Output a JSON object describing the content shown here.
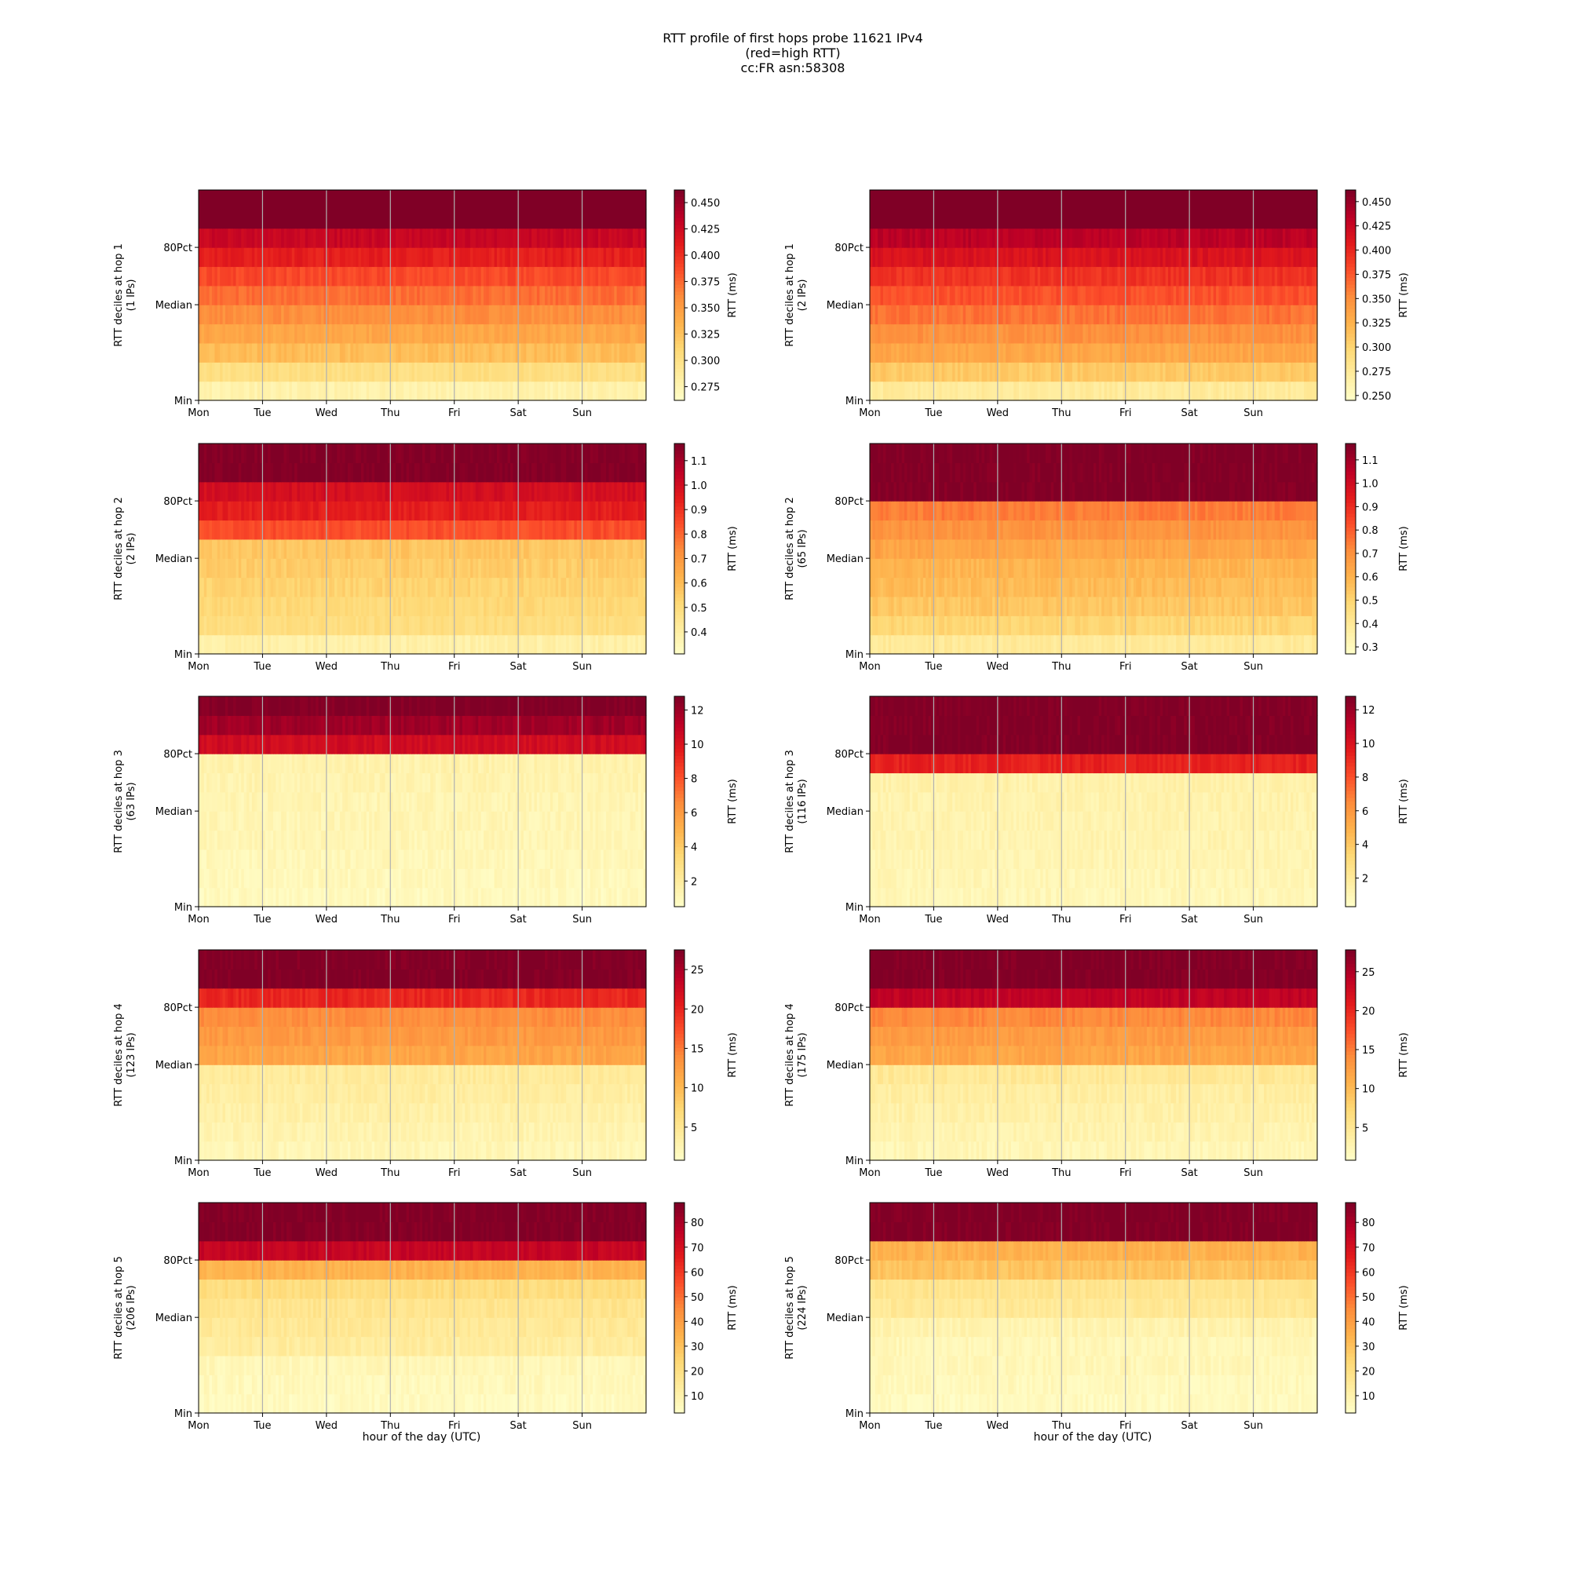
{
  "figure": {
    "title_lines": [
      "RTT profile of first hops probe 11621 IPv4",
      "(red=high RTT)",
      "cc:FR asn:58308"
    ],
    "xlabel": "hour of the day (UTC)",
    "x_ticks": [
      "Mon",
      "Tue",
      "Wed",
      "Thu",
      "Fri",
      "Sat",
      "Sun"
    ],
    "y_ticks": [
      "Min",
      "Median",
      "80Pct"
    ],
    "colorbar_label": "RTT (ms)",
    "colormap": [
      "#ffffcc",
      "#ffeda0",
      "#fed976",
      "#feb24c",
      "#fd8d3c",
      "#fc4e2a",
      "#e31a1c",
      "#bd0026",
      "#800026"
    ]
  },
  "chart_data": [
    {
      "type": "heatmap",
      "hop": 1,
      "column": "left",
      "ylabel": [
        "RTT deciles at hop 1",
        "(1 IPs)"
      ],
      "colorbar_ticks": [
        "0.450",
        "0.425",
        "0.400",
        "0.375",
        "0.350",
        "0.325",
        "0.300",
        "0.275"
      ],
      "vmin": 0.262,
      "vmax": 0.462,
      "deciles": [
        0.28,
        0.305,
        0.33,
        0.345,
        0.36,
        0.375,
        0.39,
        0.41,
        0.43,
        0.47,
        0.47
      ]
    },
    {
      "type": "heatmap",
      "hop": 1,
      "column": "right",
      "ylabel": [
        "RTT deciles at hop 1",
        "(2 IPs)"
      ],
      "colorbar_ticks": [
        "0.450",
        "0.425",
        "0.400",
        "0.375",
        "0.350",
        "0.325",
        "0.300",
        "0.275",
        "0.250"
      ],
      "vmin": 0.245,
      "vmax": 0.462,
      "deciles": [
        0.275,
        0.31,
        0.335,
        0.35,
        0.365,
        0.38,
        0.395,
        0.415,
        0.435,
        0.47,
        0.47
      ]
    },
    {
      "type": "heatmap",
      "hop": 2,
      "column": "left",
      "ylabel": [
        "RTT deciles at hop 2",
        "(2 IPs)"
      ],
      "colorbar_ticks": [
        "1.1",
        "1.0",
        "0.9",
        "0.8",
        "0.7",
        "0.6",
        "0.5",
        "0.4"
      ],
      "vmin": 0.31,
      "vmax": 1.17,
      "deciles": [
        0.4,
        0.5,
        0.52,
        0.54,
        0.56,
        0.58,
        0.85,
        0.95,
        1.0,
        1.17,
        1.17
      ]
    },
    {
      "type": "heatmap",
      "hop": 2,
      "column": "right",
      "ylabel": [
        "RTT deciles at hop 2",
        "(65 IPs)"
      ],
      "colorbar_ticks": [
        "1.1",
        "1.0",
        "0.9",
        "0.8",
        "0.7",
        "0.6",
        "0.5",
        "0.4",
        "0.3"
      ],
      "vmin": 0.27,
      "vmax": 1.17,
      "deciles": [
        0.4,
        0.5,
        0.55,
        0.58,
        0.6,
        0.65,
        0.7,
        0.75,
        1.17,
        1.17,
        1.17
      ]
    },
    {
      "type": "heatmap",
      "hop": 3,
      "column": "left",
      "ylabel": [
        "RTT deciles at hop 3",
        "(63 IPs)"
      ],
      "colorbar_ticks": [
        "12",
        "10",
        "8",
        "6",
        "4",
        "2"
      ],
      "vmin": 0.5,
      "vmax": 12.8,
      "deciles": [
        1.0,
        1.1,
        1.2,
        1.3,
        1.35,
        1.4,
        1.5,
        1.6,
        10.5,
        12.0,
        12.8
      ]
    },
    {
      "type": "heatmap",
      "hop": 3,
      "column": "right",
      "ylabel": [
        "RTT deciles at hop 3",
        "(116 IPs)"
      ],
      "colorbar_ticks": [
        "12",
        "10",
        "8",
        "6",
        "4",
        "2"
      ],
      "vmin": 0.3,
      "vmax": 12.8,
      "deciles": [
        1.0,
        1.1,
        1.2,
        1.3,
        1.35,
        1.4,
        1.5,
        9.5,
        12.8,
        12.8,
        12.8
      ]
    },
    {
      "type": "heatmap",
      "hop": 4,
      "column": "left",
      "ylabel": [
        "RTT deciles at hop 4",
        "(123 IPs)"
      ],
      "colorbar_ticks": [
        "25",
        "20",
        "15",
        "10",
        "5"
      ],
      "vmin": 0.8,
      "vmax": 27.5,
      "deciles": [
        2.5,
        3.0,
        3.5,
        4.0,
        4.5,
        12.0,
        13.0,
        14.0,
        20.0,
        27.5,
        27.5
      ]
    },
    {
      "type": "heatmap",
      "hop": 4,
      "column": "right",
      "ylabel": [
        "RTT deciles at hop 4",
        "(175 IPs)"
      ],
      "colorbar_ticks": [
        "25",
        "20",
        "15",
        "10",
        "5"
      ],
      "vmin": 0.8,
      "vmax": 27.8,
      "deciles": [
        2.5,
        3.0,
        3.5,
        4.0,
        5.0,
        12.0,
        13.0,
        14.5,
        24.0,
        27.8,
        27.8
      ]
    },
    {
      "type": "heatmap",
      "hop": 5,
      "column": "left",
      "ylabel": [
        "RTT deciles at hop 5",
        "(206 IPs)"
      ],
      "colorbar_ticks": [
        "80",
        "70",
        "60",
        "50",
        "40",
        "30",
        "20",
        "10"
      ],
      "vmin": 3,
      "vmax": 88,
      "deciles": [
        6,
        7,
        8,
        14,
        16,
        18,
        22,
        35,
        75,
        88,
        88
      ]
    },
    {
      "type": "heatmap",
      "hop": 5,
      "column": "right",
      "ylabel": [
        "RTT deciles at hop 5",
        "(224 IPs)"
      ],
      "colorbar_ticks": [
        "80",
        "70",
        "60",
        "50",
        "40",
        "30",
        "20",
        "10"
      ],
      "vmin": 3,
      "vmax": 88,
      "deciles": [
        6,
        7,
        8,
        8,
        10,
        16,
        18,
        30,
        35,
        88,
        88
      ]
    }
  ]
}
